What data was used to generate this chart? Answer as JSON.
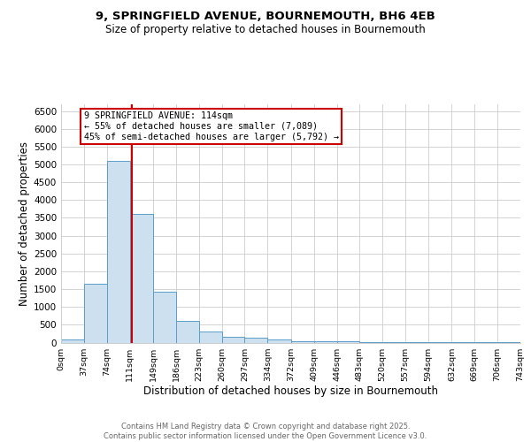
{
  "title_line1": "9, SPRINGFIELD AVENUE, BOURNEMOUTH, BH6 4EB",
  "title_line2": "Size of property relative to detached houses in Bournemouth",
  "xlabel": "Distribution of detached houses by size in Bournemouth",
  "ylabel": "Number of detached properties",
  "bin_edges": [
    0,
    37,
    74,
    111,
    149,
    186,
    223,
    260,
    297,
    334,
    372,
    409,
    446,
    483,
    520,
    557,
    594,
    632,
    669,
    706,
    743
  ],
  "bar_heights": [
    75,
    1650,
    5100,
    3600,
    1420,
    610,
    310,
    160,
    130,
    90,
    30,
    30,
    30,
    5,
    2,
    2,
    2,
    1,
    1,
    1
  ],
  "bar_color": "#cce0f0",
  "bar_edge_color": "#5a9ec9",
  "property_size": 114,
  "vline_color": "#cc0000",
  "annotation_text": "9 SPRINGFIELD AVENUE: 114sqm\n← 55% of detached houses are smaller (7,089)\n45% of semi-detached houses are larger (5,792) →",
  "annotation_box_color": "#ffffff",
  "annotation_box_edge_color": "#cc0000",
  "ylim": [
    0,
    6700
  ],
  "yticks": [
    0,
    500,
    1000,
    1500,
    2000,
    2500,
    3000,
    3500,
    4000,
    4500,
    5000,
    5500,
    6000,
    6500
  ],
  "footer_line1": "Contains HM Land Registry data © Crown copyright and database right 2025.",
  "footer_line2": "Contains public sector information licensed under the Open Government Licence v3.0.",
  "background_color": "#ffffff",
  "grid_color": "#cccccc"
}
